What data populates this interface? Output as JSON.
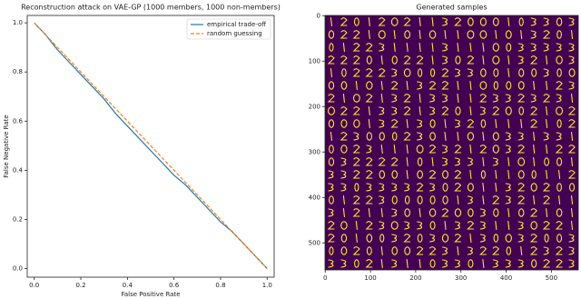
{
  "chart_data": [
    {
      "type": "line",
      "title": "Reconstruction attack on VAE-GP (1000 members, 1000 non-members)",
      "x_label": "False Positive Rate",
      "y_label": "False Negative Rate",
      "xlim": [
        -0.03,
        1.03
      ],
      "ylim": [
        -0.035,
        1.03
      ],
      "xticks": [
        {
          "value": 0,
          "label": "0.0"
        },
        0.2,
        0.4,
        0.6,
        0.8,
        {
          "value": 1,
          "label": "1.0"
        }
      ],
      "yticks": [
        {
          "value": 0,
          "label": "0.0"
        },
        0.2,
        0.4,
        0.6,
        0.8,
        {
          "value": 1,
          "label": "1.0"
        }
      ],
      "legend": "upper right",
      "series": [
        {
          "name": "empirical trade-off",
          "color": "#1f77b4",
          "style": "solid",
          "x": [
            0,
            0.05,
            0.1,
            0.15,
            0.2,
            0.25,
            0.3,
            0.35,
            0.4,
            0.45,
            0.5,
            0.55,
            0.6,
            0.65,
            0.7,
            0.75,
            0.8,
            0.85,
            0.9,
            0.95,
            1
          ],
          "values": [
            1,
            0.95,
            0.89,
            0.84,
            0.79,
            0.74,
            0.69,
            0.63,
            0.58,
            0.53,
            0.48,
            0.43,
            0.38,
            0.34,
            0.29,
            0.24,
            0.19,
            0.15,
            0.1,
            0.05,
            0
          ]
        },
        {
          "name": "random guessing",
          "color": "#ff7f0e",
          "style": "dashed",
          "x": [
            0,
            1
          ],
          "values": [
            1,
            0
          ]
        }
      ]
    },
    {
      "type": "image",
      "title": "Generated samples",
      "xlim": [
        -0.5,
        559.5
      ],
      "ylim": [
        559.5,
        -0.5
      ],
      "xticks": [
        0,
        100,
        200,
        300,
        400,
        500
      ],
      "yticks": [
        0,
        100,
        200,
        300,
        400,
        500
      ],
      "colormap": [
        "#440154",
        "#fde725"
      ]
    }
  ]
}
